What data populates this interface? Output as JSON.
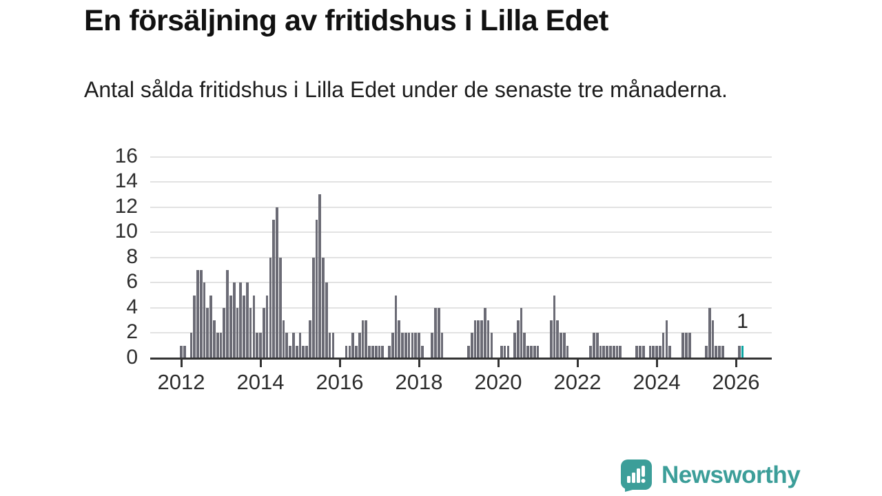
{
  "header": {
    "title": "En försäljning av fritidshus i Lilla Edet",
    "subtitle": "Antal sålda fritidshus i Lilla Edet under de senaste tre månaderna."
  },
  "chart_data": {
    "type": "bar",
    "title": "En försäljning av fritidshus i Lilla Edet",
    "subtitle": "Antal sålda fritidshus i Lilla Edet under de senaste tre månaderna.",
    "x_start_year": 2012,
    "x_start_month": 1,
    "x_frequency": "monthly",
    "values": [
      1,
      1,
      0,
      2,
      5,
      7,
      7,
      6,
      4,
      5,
      3,
      2,
      2,
      4,
      7,
      5,
      6,
      4,
      6,
      5,
      6,
      4,
      5,
      2,
      2,
      4,
      5,
      8,
      11,
      12,
      8,
      3,
      2,
      1,
      2,
      1,
      2,
      1,
      1,
      3,
      8,
      11,
      13,
      8,
      6,
      2,
      2,
      0,
      0,
      0,
      1,
      1,
      2,
      1,
      2,
      3,
      3,
      1,
      1,
      1,
      1,
      1,
      0,
      1,
      2,
      5,
      3,
      2,
      2,
      2,
      2,
      2,
      2,
      1,
      0,
      0,
      2,
      4,
      4,
      2,
      0,
      0,
      0,
      0,
      0,
      0,
      0,
      1,
      2,
      3,
      3,
      3,
      4,
      3,
      2,
      0,
      0,
      1,
      1,
      1,
      0,
      2,
      3,
      4,
      2,
      1,
      1,
      1,
      1,
      0,
      0,
      0,
      3,
      5,
      3,
      2,
      2,
      1,
      0,
      0,
      0,
      0,
      0,
      0,
      1,
      2,
      2,
      1,
      1,
      1,
      1,
      1,
      1,
      1,
      0,
      0,
      0,
      0,
      1,
      1,
      1,
      0,
      1,
      1,
      1,
      1,
      2,
      3,
      1,
      0,
      0,
      0,
      2,
      2,
      2,
      0,
      0,
      0,
      0,
      1,
      4,
      3,
      1,
      1,
      1,
      0,
      0,
      0,
      0,
      1,
      1
    ],
    "ylim": [
      0,
      16
    ],
    "yticks": [
      0,
      2,
      4,
      6,
      8,
      10,
      12,
      14,
      16
    ],
    "xticks": [
      2012,
      2014,
      2016,
      2018,
      2020,
      2022,
      2024,
      2026
    ],
    "grid": true,
    "legend_position": "none",
    "bar_color": "#6b6b75",
    "highlight_color": "#0aa5a2",
    "highlight_index": 170,
    "highlight_label": "1"
  },
  "footer": {
    "brand": "Newsworthy",
    "brand_color": "#3c9e99"
  }
}
